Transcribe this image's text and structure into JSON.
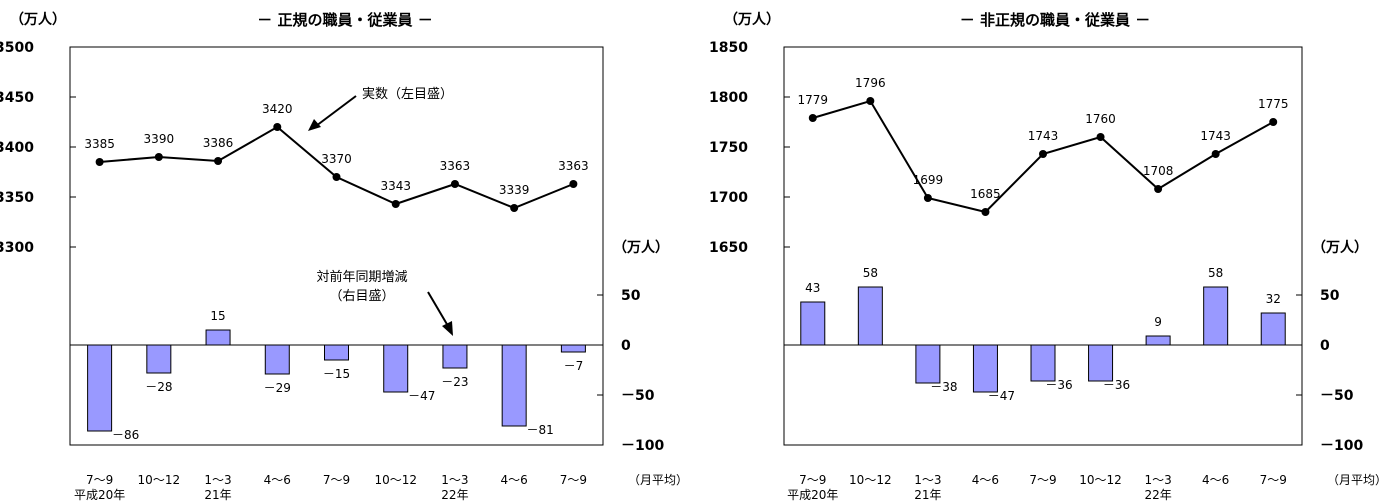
{
  "chart_data": [
    {
      "type": "line+bar",
      "title": "－ 正規の職員・従業員 －",
      "left_unit": "（万人）",
      "right_unit": "（万人）",
      "period_note": "（月平均）",
      "categories": [
        "7～9",
        "10～12",
        "1～3",
        "4～6",
        "7～9",
        "10～12",
        "1～3",
        "4～6",
        "7～9"
      ],
      "year_labels": [
        {
          "index": 0,
          "text": "平成20年"
        },
        {
          "index": 2,
          "text": "21年"
        },
        {
          "index": 6,
          "text": "22年"
        }
      ],
      "line_series": {
        "values": [
          3385,
          3390,
          3386,
          3420,
          3370,
          3343,
          3363,
          3339,
          3363
        ]
      },
      "bar_series": {
        "values": [
          -86,
          -28,
          15,
          -29,
          -15,
          -47,
          -23,
          -81,
          -7
        ],
        "color": "#9999ff"
      },
      "left_axis": {
        "range": [
          3300,
          3500
        ],
        "ticks": [
          "3300",
          "3350",
          "3400",
          "3450",
          "3500"
        ]
      },
      "right_axis": {
        "range": [
          -100,
          50
        ],
        "ticks": [
          "－100",
          "－50",
          "0",
          "50"
        ]
      },
      "annotations": [
        {
          "text": "実数（左目盛）"
        },
        {
          "lines": [
            "対前年同期増減",
            "（右目盛）"
          ]
        }
      ]
    },
    {
      "type": "line+bar",
      "title": "－ 非正規の職員・従業員 －",
      "left_unit": "（万人）",
      "right_unit": "（万人）",
      "period_note": "（月平均）",
      "categories": [
        "7～9",
        "10～12",
        "1～3",
        "4～6",
        "7～9",
        "10～12",
        "1～3",
        "4～6",
        "7～9"
      ],
      "year_labels": [
        {
          "index": 0,
          "text": "平成20年"
        },
        {
          "index": 2,
          "text": "21年"
        },
        {
          "index": 6,
          "text": "22年"
        }
      ],
      "line_series": {
        "values": [
          1779,
          1796,
          1699,
          1685,
          1743,
          1760,
          1708,
          1743,
          1775
        ]
      },
      "bar_series": {
        "values": [
          43,
          58,
          -38,
          -47,
          -36,
          -36,
          9,
          58,
          32
        ],
        "color": "#9999ff"
      },
      "left_axis": {
        "range": [
          1650,
          1850
        ],
        "ticks": [
          "1650",
          "1700",
          "1750",
          "1800",
          "1850"
        ]
      },
      "right_axis": {
        "range": [
          -100,
          50
        ],
        "ticks": [
          "－100",
          "－50",
          "0",
          "50"
        ]
      },
      "annotations": []
    }
  ]
}
